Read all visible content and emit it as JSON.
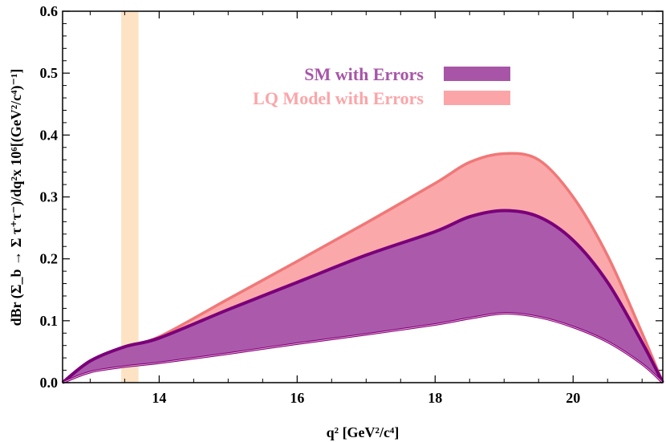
{
  "chart_data": {
    "type": "area",
    "xlim": [
      12.6,
      21.3
    ],
    "ylim": [
      0,
      0.6
    ],
    "xticks": [
      14,
      16,
      18,
      20
    ],
    "xtick_labels": [
      "14",
      "16",
      "18",
      "20"
    ],
    "yticks": [
      0.0,
      0.1,
      0.2,
      0.3,
      0.4,
      0.5,
      0.6
    ],
    "ytick_labels": [
      "0.0",
      "0.1",
      "0.2",
      "0.3",
      "0.4",
      "0.5",
      "0.6"
    ],
    "xlabel": "q² [GeV²/c⁴]",
    "ylabel": "dBr (Σ_b → Σ τ⁺τ⁻)/dq²x 10⁶[(GeV²/c⁴)⁻¹]",
    "grid": false,
    "legend_position": "top-right",
    "vertical_band": {
      "x": [
        13.45,
        13.7
      ],
      "color": "#fde3c4"
    },
    "x": [
      12.6,
      13.0,
      13.5,
      14.0,
      15.0,
      16.0,
      17.0,
      18.0,
      18.5,
      19.0,
      19.5,
      20.0,
      20.5,
      21.0,
      21.3
    ],
    "series": [
      {
        "name": "SM with Errors",
        "color": "#a855a8",
        "edge_color": "#7a007a",
        "lower": [
          0.0,
          0.017,
          0.026,
          0.032,
          0.047,
          0.063,
          0.078,
          0.094,
          0.104,
          0.112,
          0.106,
          0.09,
          0.066,
          0.03,
          0.0
        ],
        "upper": [
          0.0,
          0.035,
          0.058,
          0.072,
          0.118,
          0.162,
          0.206,
          0.244,
          0.268,
          0.278,
          0.268,
          0.23,
          0.162,
          0.065,
          0.0
        ]
      },
      {
        "name": "LQ Model with Errors",
        "color": "#fba5a8",
        "edge_color": "#f07878",
        "lower": [
          0.0,
          0.035,
          0.058,
          0.072,
          0.118,
          0.162,
          0.206,
          0.244,
          0.268,
          0.278,
          0.268,
          0.23,
          0.162,
          0.065,
          0.0
        ],
        "upper": [
          0.0,
          0.035,
          0.058,
          0.074,
          0.135,
          0.196,
          0.258,
          0.322,
          0.356,
          0.37,
          0.36,
          0.3,
          0.205,
          0.08,
          0.0
        ]
      }
    ]
  }
}
